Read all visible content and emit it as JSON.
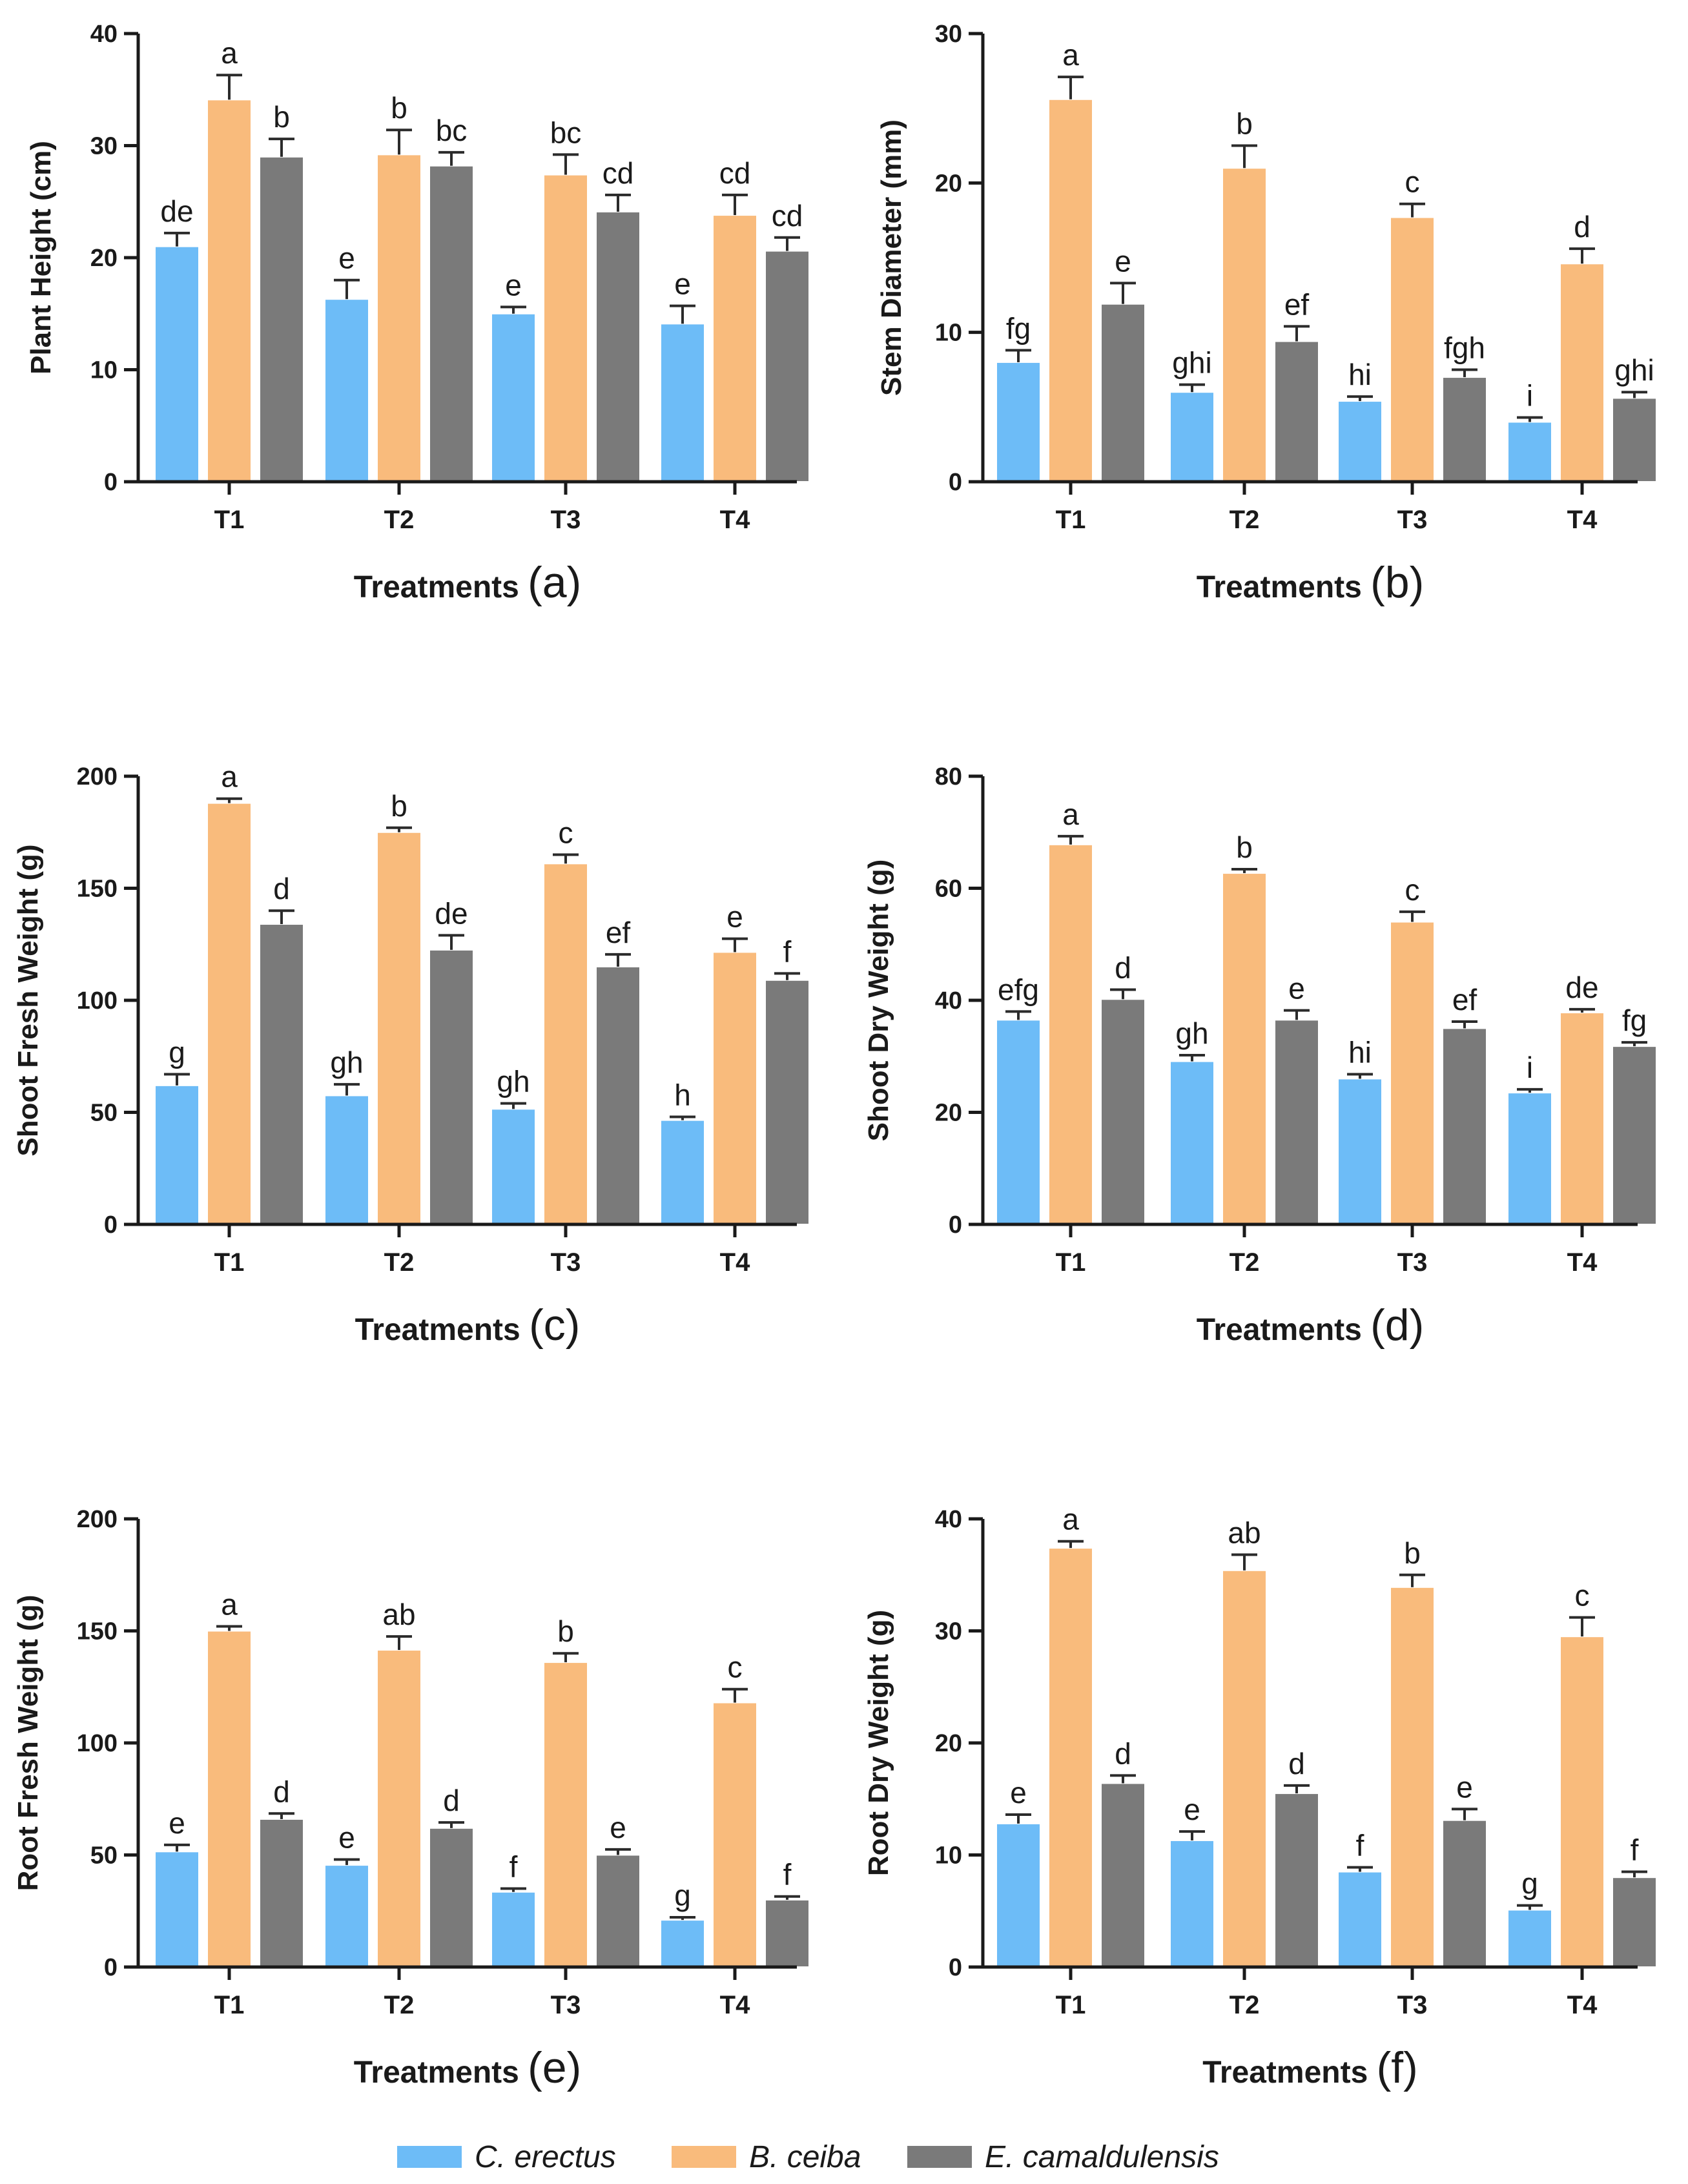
{
  "legend": [
    {
      "name": "C. erectus",
      "color": "#6dbcf7"
    },
    {
      "name": "B. ceiba",
      "color": "#f9bb7c"
    },
    {
      "name": "E. camaldulensis",
      "color": "#7a7a7a"
    }
  ],
  "chart_data": [
    {
      "type": "bar",
      "panel": "(a)",
      "ylabel": "Plant Height (cm)",
      "xlabel": "Treatments",
      "categories": [
        "T1",
        "T2",
        "T3",
        "T4"
      ],
      "ylim": [
        0,
        40
      ],
      "yticks": [
        0,
        10,
        20,
        30,
        40
      ],
      "series": [
        {
          "name": "C. erectus",
          "values": [
            21,
            16.3,
            15,
            14.1
          ],
          "errors": [
            1.2,
            1.7,
            0.6,
            1.6
          ],
          "letters": [
            "de",
            "e",
            "e",
            "e"
          ]
        },
        {
          "name": "B. ceiba",
          "values": [
            34.1,
            29.2,
            27.4,
            23.8
          ],
          "errors": [
            2.2,
            2.2,
            1.8,
            1.8
          ],
          "letters": [
            "a",
            "b",
            "bc",
            "cd"
          ]
        },
        {
          "name": "E. camaldulensis",
          "values": [
            29,
            28.2,
            24.1,
            20.6
          ],
          "errors": [
            1.6,
            1.2,
            1.5,
            1.2
          ],
          "letters": [
            "b",
            "bc",
            "cd",
            "cd"
          ]
        }
      ]
    },
    {
      "type": "bar",
      "panel": "(b)",
      "ylabel": "Stem Diameter (mm)",
      "xlabel": "Treatments",
      "categories": [
        "T1",
        "T2",
        "T3",
        "T4"
      ],
      "ylim": [
        0,
        30
      ],
      "yticks": [
        0,
        10,
        20,
        30
      ],
      "series": [
        {
          "name": "C. erectus",
          "values": [
            8,
            6,
            5.4,
            4
          ],
          "errors": [
            0.8,
            0.5,
            0.3,
            0.3
          ],
          "letters": [
            "fg",
            "ghi",
            "hi",
            "i"
          ]
        },
        {
          "name": "B. ceiba",
          "values": [
            25.6,
            21,
            17.7,
            14.6
          ],
          "errors": [
            1.5,
            1.5,
            0.9,
            1
          ],
          "letters": [
            "a",
            "b",
            "c",
            "d"
          ]
        },
        {
          "name": "E. camaldulensis",
          "values": [
            11.9,
            9.4,
            7,
            5.6
          ],
          "errors": [
            1.4,
            1,
            0.5,
            0.4
          ],
          "letters": [
            "e",
            "ef",
            "fgh",
            "ghi"
          ]
        }
      ]
    },
    {
      "type": "bar",
      "panel": "(c)",
      "ylabel": "Shoot Fresh Weight (g)",
      "xlabel": "Treatments",
      "categories": [
        "T1",
        "T2",
        "T3",
        "T4"
      ],
      "ylim": [
        0,
        200
      ],
      "yticks": [
        0,
        50,
        100,
        150,
        200
      ],
      "series": [
        {
          "name": "C. erectus",
          "values": [
            62,
            57.5,
            51.5,
            46.5
          ],
          "errors": [
            5,
            5,
            2.5,
            1.5
          ],
          "letters": [
            "g",
            "gh",
            "gh",
            "h"
          ]
        },
        {
          "name": "B. ceiba",
          "values": [
            188,
            175,
            161,
            121.5
          ],
          "errors": [
            2,
            2,
            4,
            6
          ],
          "letters": [
            "a",
            "b",
            "c",
            "e"
          ]
        },
        {
          "name": "E. camaldulensis",
          "values": [
            134,
            122.5,
            115,
            109
          ],
          "errors": [
            6,
            6.5,
            5.5,
            3
          ],
          "letters": [
            "d",
            "de",
            "ef",
            "f"
          ]
        }
      ]
    },
    {
      "type": "bar",
      "panel": "(d)",
      "ylabel": "Shoot Dry Weight (g)",
      "xlabel": "Treatments",
      "categories": [
        "T1",
        "T2",
        "T3",
        "T4"
      ],
      "ylim": [
        0,
        80
      ],
      "yticks": [
        0,
        20,
        40,
        60,
        80
      ],
      "series": [
        {
          "name": "C. erectus",
          "values": [
            36.5,
            29.1,
            26,
            23.5
          ],
          "errors": [
            1.5,
            1.1,
            0.8,
            0.6
          ],
          "letters": [
            "efg",
            "gh",
            "hi",
            "i"
          ]
        },
        {
          "name": "B. ceiba",
          "values": [
            67.8,
            62.7,
            54,
            37.8
          ],
          "errors": [
            1.5,
            0.7,
            1.8,
            0.6
          ],
          "letters": [
            "a",
            "b",
            "c",
            "de"
          ]
        },
        {
          "name": "E. camaldulensis",
          "values": [
            40.2,
            36.5,
            35,
            31.8
          ],
          "errors": [
            1.7,
            1.7,
            1.2,
            0.7
          ],
          "letters": [
            "d",
            "e",
            "ef",
            "fg"
          ]
        }
      ]
    },
    {
      "type": "bar",
      "panel": "(e)",
      "ylabel": "Root Fresh Weight (g)",
      "xlabel": "Treatments",
      "categories": [
        "T1",
        "T2",
        "T3",
        "T4"
      ],
      "ylim": [
        0,
        200
      ],
      "yticks": [
        0,
        50,
        100,
        150,
        200
      ],
      "series": [
        {
          "name": "C. erectus",
          "values": [
            51.5,
            45.5,
            33.5,
            21
          ],
          "errors": [
            3,
            2.5,
            1.5,
            1.2
          ],
          "letters": [
            "e",
            "e",
            "f",
            "g"
          ]
        },
        {
          "name": "B. ceiba",
          "values": [
            150,
            141.5,
            136,
            118
          ],
          "errors": [
            2,
            6,
            4,
            6
          ],
          "letters": [
            "a",
            "ab",
            "b",
            "c"
          ]
        },
        {
          "name": "E. camaldulensis",
          "values": [
            66,
            62,
            50,
            30
          ],
          "errors": [
            2.5,
            2.5,
            2.5,
            1.5
          ],
          "letters": [
            "d",
            "d",
            "e",
            "f"
          ]
        }
      ]
    },
    {
      "type": "bar",
      "panel": "(f)",
      "ylabel": "Root Dry Weight (g)",
      "xlabel": "Treatments",
      "categories": [
        "T1",
        "T2",
        "T3",
        "T4"
      ],
      "ylim": [
        0,
        40
      ],
      "yticks": [
        0,
        10,
        20,
        30,
        40
      ],
      "series": [
        {
          "name": "C. erectus",
          "values": [
            12.8,
            11.3,
            8.5,
            5.1
          ],
          "errors": [
            0.8,
            0.8,
            0.4,
            0.4
          ],
          "letters": [
            "e",
            "e",
            "f",
            "g"
          ]
        },
        {
          "name": "B. ceiba",
          "values": [
            37.4,
            35.4,
            33.9,
            29.5
          ],
          "errors": [
            0.6,
            1.4,
            1.1,
            1.7
          ],
          "letters": [
            "a",
            "ab",
            "b",
            "c"
          ]
        },
        {
          "name": "E. camaldulensis",
          "values": [
            16.4,
            15.5,
            13.1,
            8
          ],
          "errors": [
            0.7,
            0.7,
            1,
            0.5
          ],
          "letters": [
            "d",
            "d",
            "e",
            "f"
          ]
        }
      ]
    }
  ]
}
